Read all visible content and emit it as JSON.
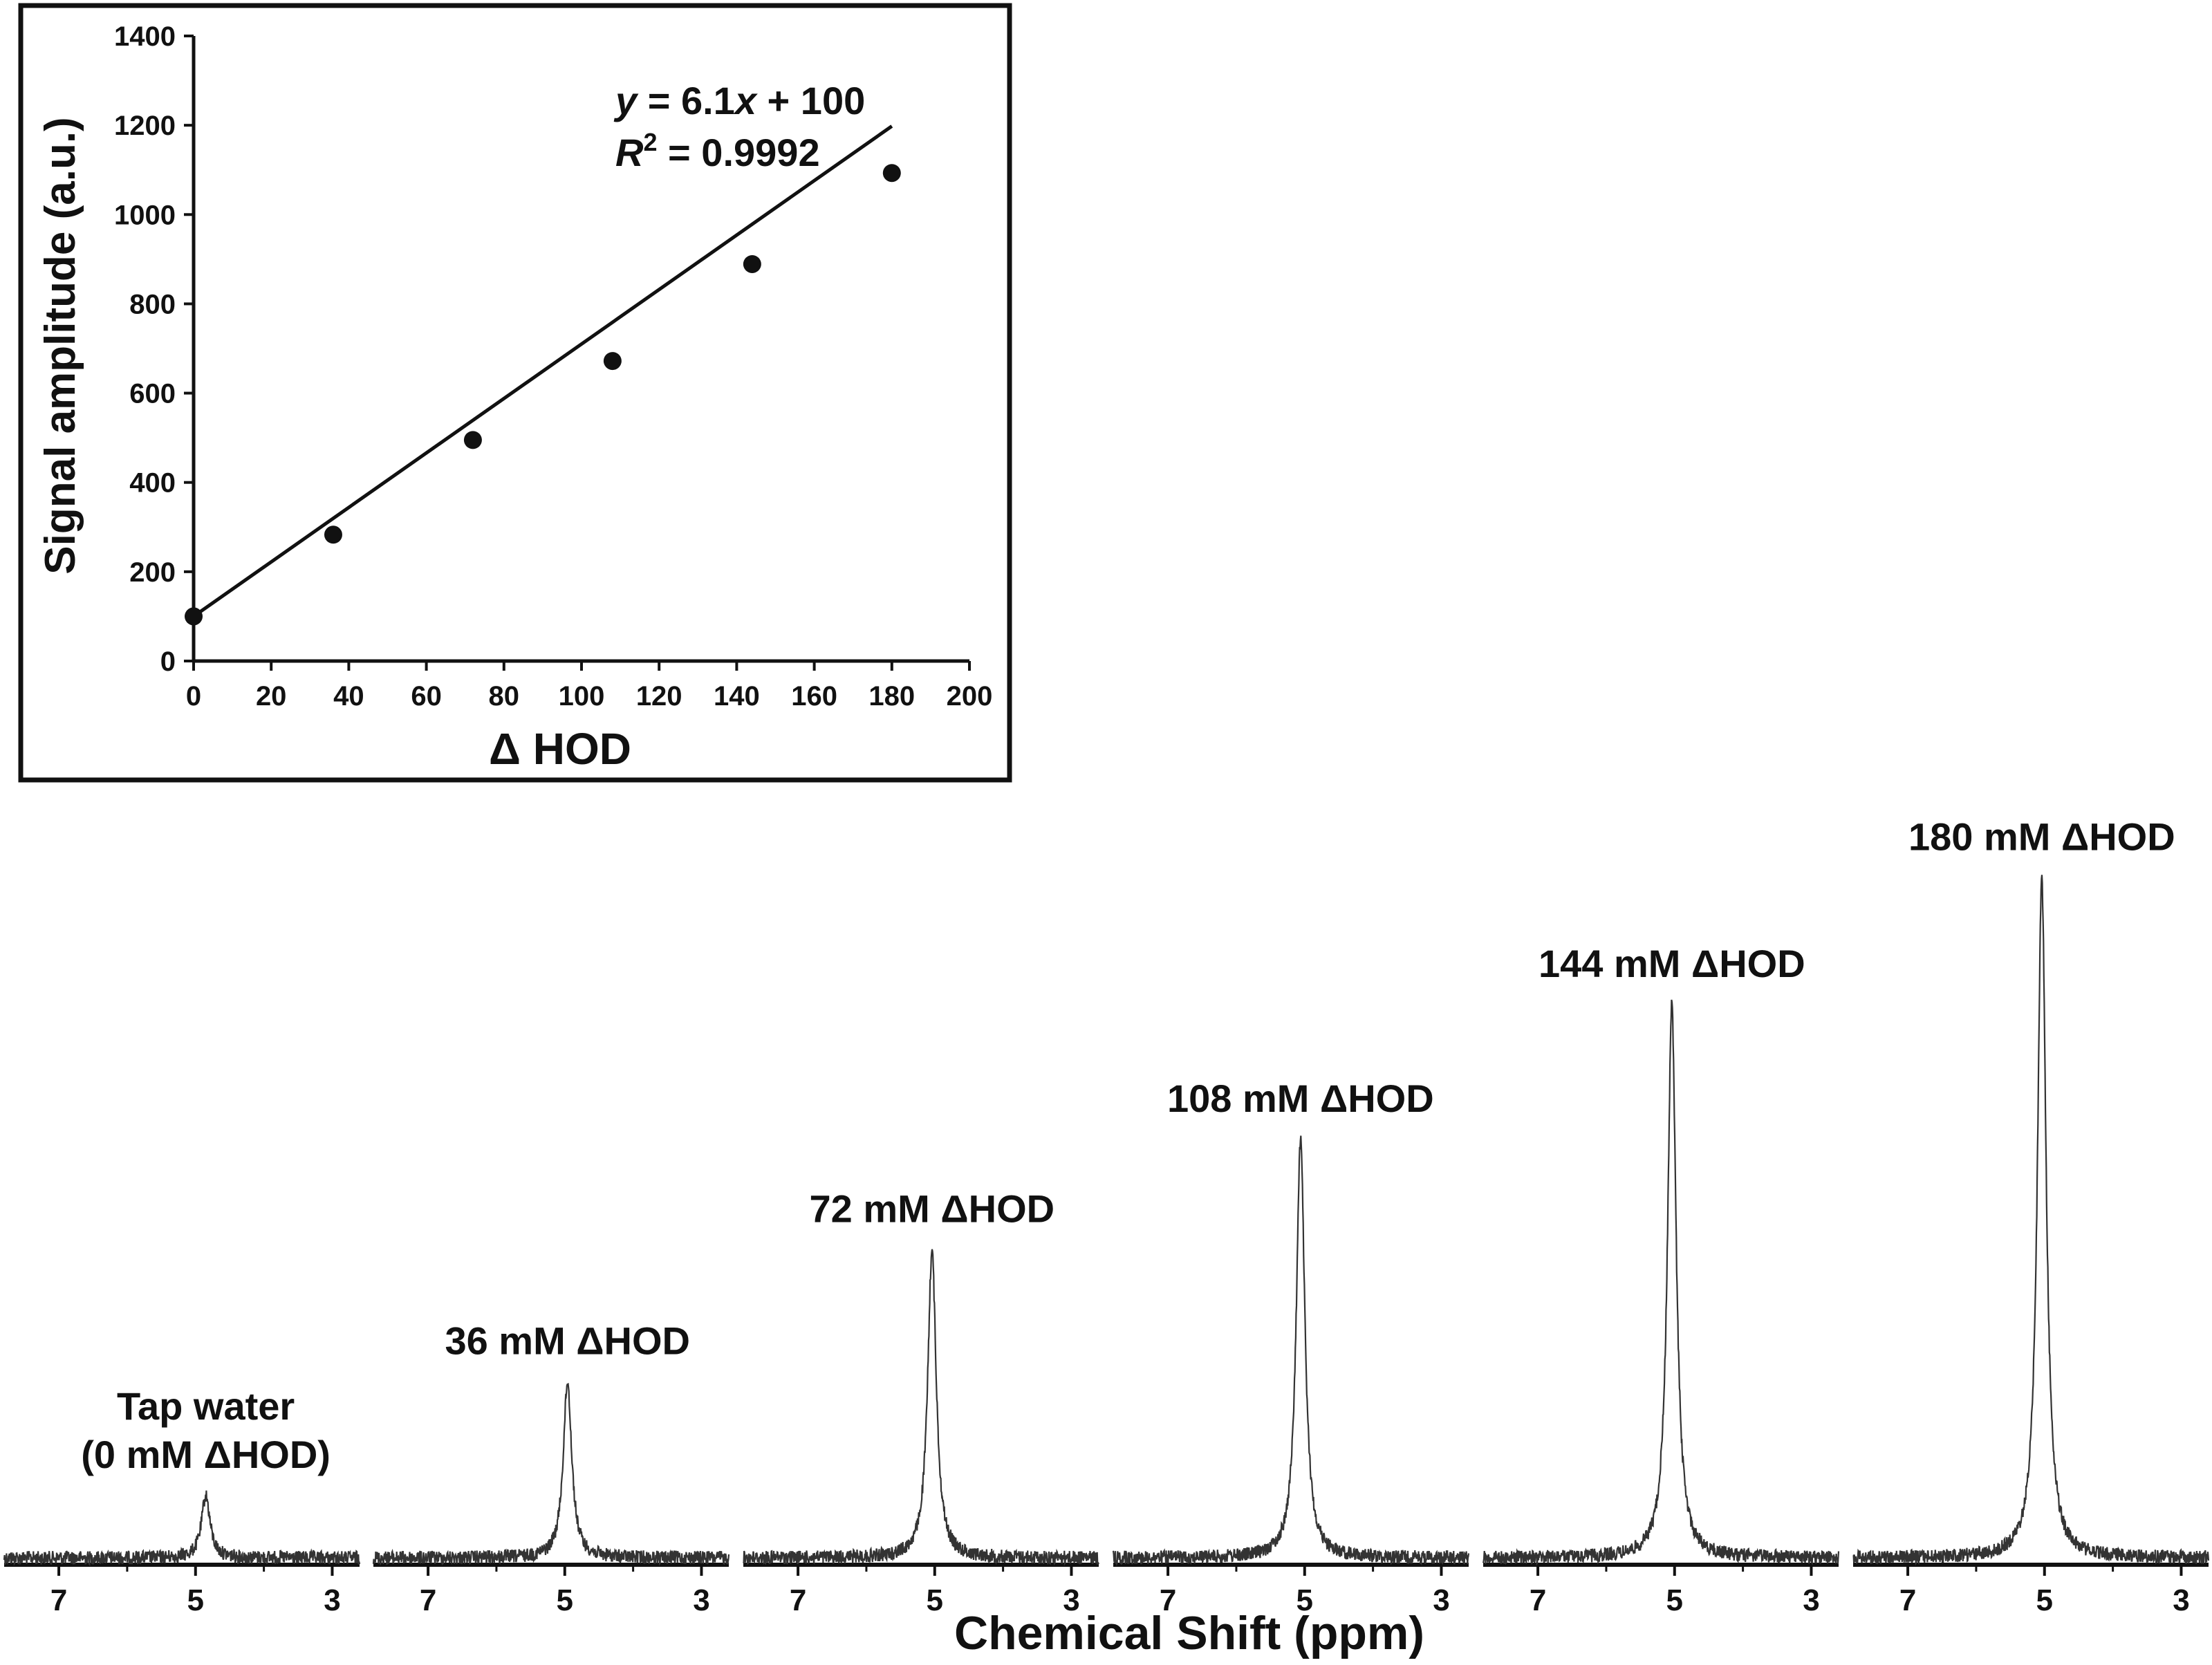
{
  "chart_data": [
    {
      "type": "scatter",
      "panel": "inset",
      "xlabel": "Δ HOD",
      "ylabel": "Signal amplitude (a.u.)",
      "xlim": [
        0,
        200
      ],
      "ylim": [
        0,
        1400
      ],
      "xticks": [
        "0",
        "20",
        "40",
        "60",
        "80",
        "100",
        "120",
        "140",
        "160",
        "180",
        "200"
      ],
      "yticks": [
        "0",
        "200",
        "400",
        "600",
        "800",
        "1000",
        "1200",
        "1400"
      ],
      "x": [
        0,
        36,
        72,
        108,
        144,
        180
      ],
      "y": [
        100,
        283,
        495,
        672,
        889,
        1093
      ],
      "fit": {
        "slope": 6.1,
        "intercept": 100
      },
      "annotation": {
        "y_italic": "y",
        "eq_mid": " = 6.1",
        "x_italic": "x",
        "eq_end": " + 100",
        "r_italic": "R",
        "r_sup": "2",
        "r_value": " = 0.9992"
      },
      "grid": false
    },
    {
      "type": "line",
      "panel": "spectra",
      "xlabel": "Chemical Shift (ppm)",
      "xlim": [
        7.8,
        2.6
      ],
      "xticks": [
        "7",
        "5",
        "3"
      ],
      "series": [
        {
          "label_lines": [
            "Tap water",
            "(0 mM ΔHOD)"
          ],
          "peak_ppm": 4.85,
          "amplitude": 100
        },
        {
          "label_lines": [
            "36 mM ΔHOD"
          ],
          "peak_ppm": 4.96,
          "amplitude": 283
        },
        {
          "label_lines": [
            "72 mM ΔHOD"
          ],
          "peak_ppm": 5.04,
          "amplitude": 495
        },
        {
          "label_lines": [
            "108 mM ΔHOD"
          ],
          "peak_ppm": 5.06,
          "amplitude": 672
        },
        {
          "label_lines": [
            "144 mM ΔHOD"
          ],
          "peak_ppm": 5.04,
          "amplitude": 889
        },
        {
          "label_lines": [
            "180 mM ΔHOD"
          ],
          "peak_ppm": 5.04,
          "amplitude": 1093
        }
      ]
    }
  ],
  "colors": {
    "ink": "#111111",
    "spectrum": "#333333",
    "background": "#ffffff"
  }
}
